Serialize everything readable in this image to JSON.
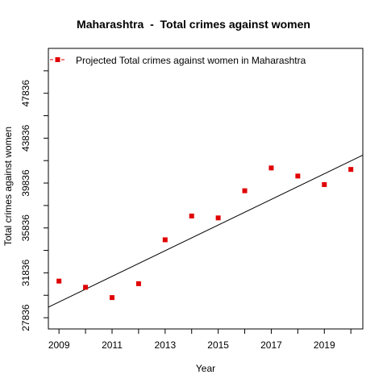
{
  "chart_data": {
    "type": "scatter",
    "title": "Maharashtra  -  Total crimes against women",
    "xlabel": "Year",
    "ylabel": "Total crimes against women",
    "xlim": [
      2008.6,
      2020.45
    ],
    "ylim": [
      26836,
      51836
    ],
    "x_ticks": [
      2009,
      2011,
      2013,
      2015,
      2017,
      2019
    ],
    "y_ticks": [
      27836,
      31836,
      35836,
      39836,
      43836,
      47836
    ],
    "legend": {
      "position": "top-left",
      "entries": [
        "Projected  Total crimes against women  in  Maharashtra"
      ]
    },
    "grid": false,
    "series": [
      {
        "name": "Projected  Total crimes against women  in  Maharashtra",
        "color": "#e00000",
        "marker": "square",
        "x": [
          2009,
          2010,
          2011,
          2012,
          2013,
          2014,
          2015,
          2016,
          2017,
          2018,
          2019,
          2020
        ],
        "y": [
          31100,
          30550,
          29630,
          30870,
          34780,
          36900,
          36730,
          39150,
          41180,
          40460,
          39700,
          41050
        ]
      }
    ],
    "trendline": {
      "x": [
        2008.6,
        2020.45
      ],
      "y": [
        28780,
        42320
      ],
      "color": "#000000"
    }
  }
}
